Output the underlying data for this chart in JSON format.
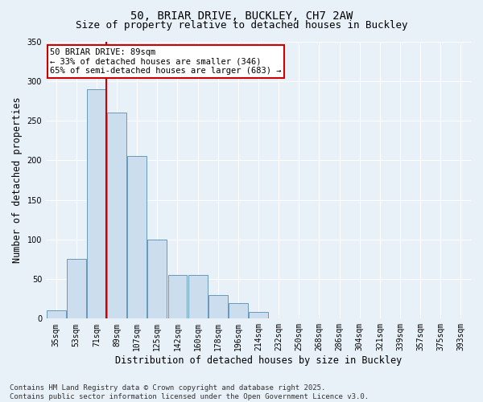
{
  "title_line1": "50, BRIAR DRIVE, BUCKLEY, CH7 2AW",
  "title_line2": "Size of property relative to detached houses in Buckley",
  "xlabel": "Distribution of detached houses by size in Buckley",
  "ylabel": "Number of detached properties",
  "bar_color": "#ccdded",
  "bar_edge_color": "#6699bb",
  "background_color": "#e8f0f8",
  "grid_color": "#ffffff",
  "categories": [
    "35sqm",
    "53sqm",
    "71sqm",
    "89sqm",
    "107sqm",
    "125sqm",
    "142sqm",
    "160sqm",
    "178sqm",
    "196sqm",
    "214sqm",
    "232sqm",
    "250sqm",
    "268sqm",
    "286sqm",
    "304sqm",
    "321sqm",
    "339sqm",
    "357sqm",
    "375sqm",
    "393sqm"
  ],
  "values": [
    10,
    75,
    290,
    260,
    205,
    100,
    55,
    55,
    30,
    20,
    8,
    0,
    0,
    0,
    0,
    0,
    0,
    0,
    0,
    0,
    0
  ],
  "ylim": [
    0,
    350
  ],
  "yticks": [
    0,
    50,
    100,
    150,
    200,
    250,
    300,
    350
  ],
  "red_line_index": 3,
  "annotation_text": "50 BRIAR DRIVE: 89sqm\n← 33% of detached houses are smaller (346)\n65% of semi-detached houses are larger (683) →",
  "annotation_box_color": "#ffffff",
  "annotation_box_edge": "#cc0000",
  "red_line_color": "#cc0000",
  "footer_line1": "Contains HM Land Registry data © Crown copyright and database right 2025.",
  "footer_line2": "Contains public sector information licensed under the Open Government Licence v3.0.",
  "title_fontsize": 10,
  "subtitle_fontsize": 9,
  "tick_fontsize": 7,
  "ylabel_fontsize": 8.5,
  "xlabel_fontsize": 8.5,
  "annotation_fontsize": 7.5,
  "footer_fontsize": 6.5
}
